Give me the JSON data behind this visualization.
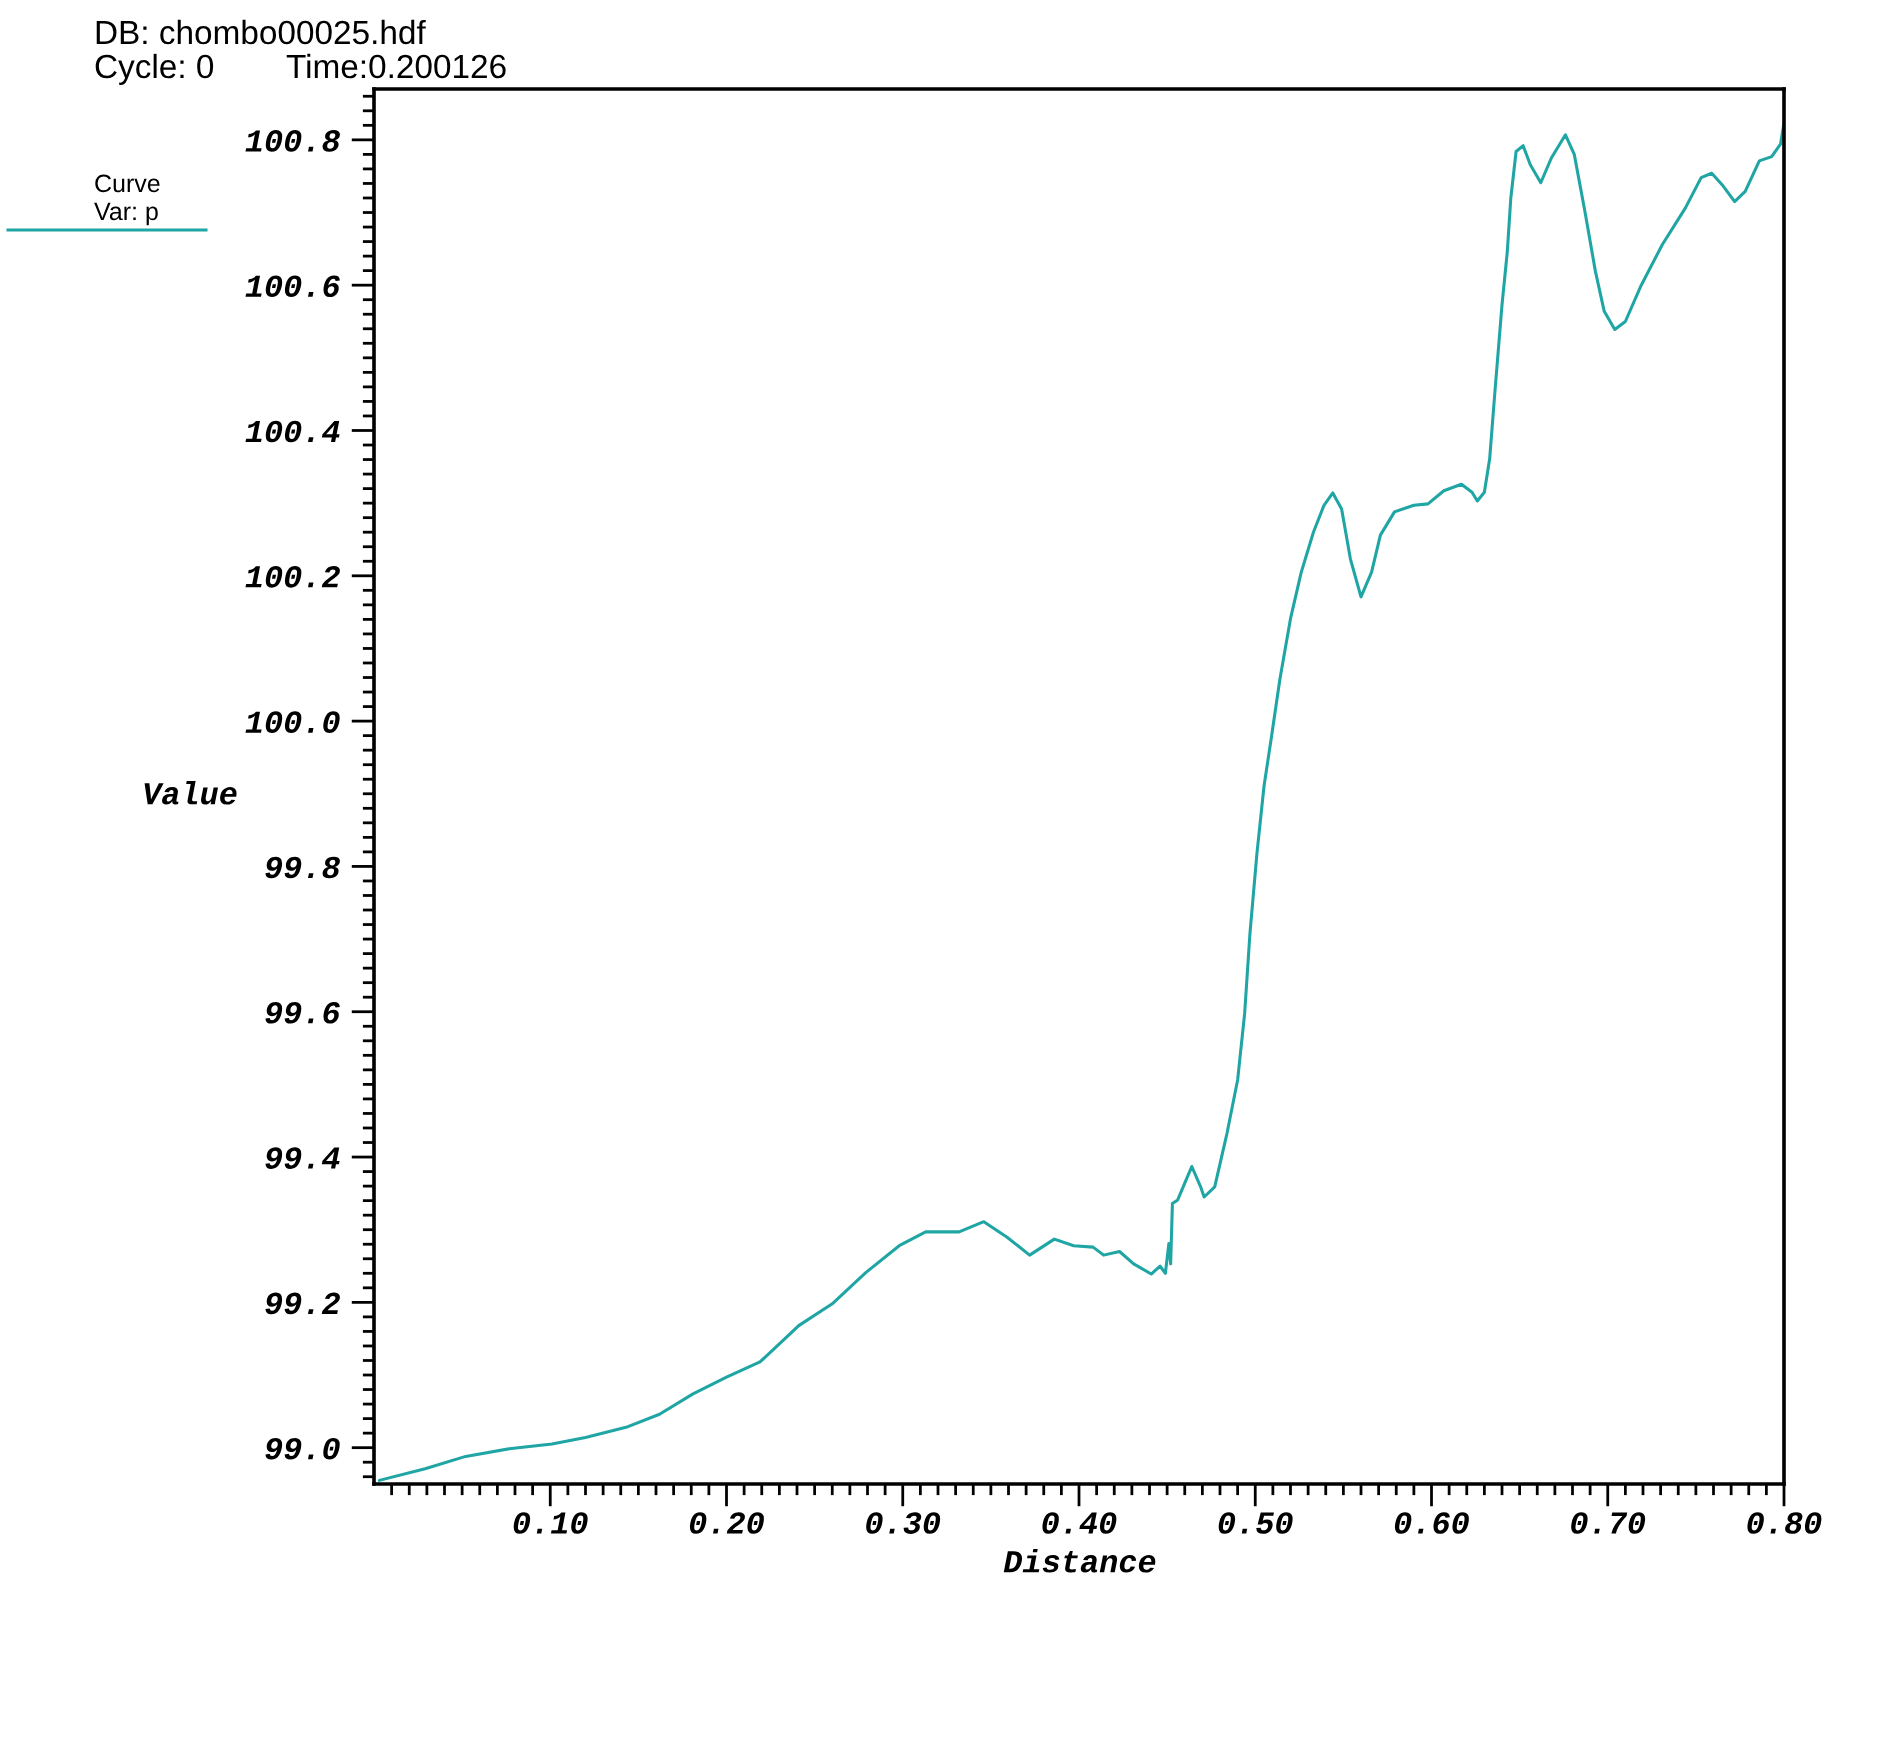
{
  "chart_data": {
    "type": "line",
    "title": "DB: chombo00025.hdf",
    "annotations": [
      "Cycle: 0",
      "Time:0.200126"
    ],
    "xlabel": "Distance",
    "ylabel": "Value",
    "legend_title": "Curve",
    "legend": "top left",
    "grid": false,
    "line_style": "solid",
    "xlim": [
      0,
      0.8
    ],
    "ylim": [
      98.95,
      100.87
    ],
    "xticks": [
      {
        "value": 0.01,
        "label": null
      },
      {
        "value": 0.02,
        "label": null
      },
      {
        "value": 0.03,
        "label": null
      },
      {
        "value": 0.04,
        "label": null
      },
      {
        "value": 0.05,
        "label": null
      },
      {
        "value": 0.06,
        "label": null
      },
      {
        "value": 0.07,
        "label": null
      },
      {
        "value": 0.08,
        "label": null
      },
      {
        "value": 0.09,
        "label": null
      },
      {
        "value": 0.1,
        "label": "0.10"
      },
      {
        "value": 0.11,
        "label": null
      },
      {
        "value": 0.12,
        "label": null
      },
      {
        "value": 0.13,
        "label": null
      },
      {
        "value": 0.14,
        "label": null
      },
      {
        "value": 0.15,
        "label": null
      },
      {
        "value": 0.16,
        "label": null
      },
      {
        "value": 0.17,
        "label": null
      },
      {
        "value": 0.18,
        "label": null
      },
      {
        "value": 0.19,
        "label": null
      },
      {
        "value": 0.2,
        "label": "0.20"
      },
      {
        "value": 0.21,
        "label": null
      },
      {
        "value": 0.22,
        "label": null
      },
      {
        "value": 0.23,
        "label": null
      },
      {
        "value": 0.24,
        "label": null
      },
      {
        "value": 0.25,
        "label": null
      },
      {
        "value": 0.26,
        "label": null
      },
      {
        "value": 0.27,
        "label": null
      },
      {
        "value": 0.28,
        "label": null
      },
      {
        "value": 0.29,
        "label": null
      },
      {
        "value": 0.3,
        "label": "0.30"
      },
      {
        "value": 0.31,
        "label": null
      },
      {
        "value": 0.32,
        "label": null
      },
      {
        "value": 0.33,
        "label": null
      },
      {
        "value": 0.34,
        "label": null
      },
      {
        "value": 0.35,
        "label": null
      },
      {
        "value": 0.36,
        "label": null
      },
      {
        "value": 0.37,
        "label": null
      },
      {
        "value": 0.38,
        "label": null
      },
      {
        "value": 0.39,
        "label": null
      },
      {
        "value": 0.4,
        "label": "0.40"
      },
      {
        "value": 0.41,
        "label": null
      },
      {
        "value": 0.42,
        "label": null
      },
      {
        "value": 0.43,
        "label": null
      },
      {
        "value": 0.44,
        "label": null
      },
      {
        "value": 0.45,
        "label": null
      },
      {
        "value": 0.46,
        "label": null
      },
      {
        "value": 0.47,
        "label": null
      },
      {
        "value": 0.48,
        "label": null
      },
      {
        "value": 0.49,
        "label": null
      },
      {
        "value": 0.5,
        "label": "0.50"
      },
      {
        "value": 0.51,
        "label": null
      },
      {
        "value": 0.52,
        "label": null
      },
      {
        "value": 0.53,
        "label": null
      },
      {
        "value": 0.54,
        "label": null
      },
      {
        "value": 0.55,
        "label": null
      },
      {
        "value": 0.56,
        "label": null
      },
      {
        "value": 0.57,
        "label": null
      },
      {
        "value": 0.58,
        "label": null
      },
      {
        "value": 0.59,
        "label": null
      },
      {
        "value": 0.6,
        "label": "0.60"
      },
      {
        "value": 0.61,
        "label": null
      },
      {
        "value": 0.62,
        "label": null
      },
      {
        "value": 0.63,
        "label": null
      },
      {
        "value": 0.64,
        "label": null
      },
      {
        "value": 0.65,
        "label": null
      },
      {
        "value": 0.66,
        "label": null
      },
      {
        "value": 0.67,
        "label": null
      },
      {
        "value": 0.68,
        "label": null
      },
      {
        "value": 0.69,
        "label": null
      },
      {
        "value": 0.7,
        "label": "0.70"
      },
      {
        "value": 0.71,
        "label": null
      },
      {
        "value": 0.72,
        "label": null
      },
      {
        "value": 0.73,
        "label": null
      },
      {
        "value": 0.74,
        "label": null
      },
      {
        "value": 0.75,
        "label": null
      },
      {
        "value": 0.76,
        "label": null
      },
      {
        "value": 0.77,
        "label": null
      },
      {
        "value": 0.78,
        "label": null
      },
      {
        "value": 0.79,
        "label": null
      },
      {
        "value": 0.8,
        "label": "0.80"
      }
    ],
    "yticks": [
      {
        "value": 98.96,
        "label": null
      },
      {
        "value": 98.98,
        "label": null
      },
      {
        "value": 99,
        "label": "99.0"
      },
      {
        "value": 99.02,
        "label": null
      },
      {
        "value": 99.04,
        "label": null
      },
      {
        "value": 99.06,
        "label": null
      },
      {
        "value": 99.08,
        "label": null
      },
      {
        "value": 99.1,
        "label": null
      },
      {
        "value": 99.12,
        "label": null
      },
      {
        "value": 99.14,
        "label": null
      },
      {
        "value": 99.16,
        "label": null
      },
      {
        "value": 99.18,
        "label": null
      },
      99.2,
      {
        "value": 99.22,
        "label": null
      },
      {
        "value": 99.24,
        "label": null
      },
      {
        "value": 99.26,
        "label": null
      },
      {
        "value": 99.28,
        "label": null
      },
      {
        "value": 99.3,
        "label": null
      },
      {
        "value": 99.32,
        "label": null
      },
      {
        "value": 99.34,
        "label": null
      },
      {
        "value": 99.36,
        "label": null
      },
      {
        "value": 99.38,
        "label": null
      },
      99.4,
      {
        "value": 99.42,
        "label": null
      },
      {
        "value": 99.44,
        "label": null
      },
      {
        "value": 99.46,
        "label": null
      },
      {
        "value": 99.48,
        "label": null
      },
      {
        "value": 99.5,
        "label": null
      },
      {
        "value": 99.52,
        "label": null
      },
      {
        "value": 99.54,
        "label": null
      },
      {
        "value": 99.56,
        "label": null
      },
      {
        "value": 99.58,
        "label": null
      },
      99.6,
      {
        "value": 99.62,
        "label": null
      },
      {
        "value": 99.64,
        "label": null
      },
      {
        "value": 99.66,
        "label": null
      },
      {
        "value": 99.68,
        "label": null
      },
      {
        "value": 99.7,
        "label": null
      },
      {
        "value": 99.72,
        "label": null
      },
      {
        "value": 99.74,
        "label": null
      },
      {
        "value": 99.76,
        "label": null
      },
      {
        "value": 99.78,
        "label": null
      },
      99.8,
      {
        "value": 99.82,
        "label": null
      },
      {
        "value": 99.84,
        "label": null
      },
      {
        "value": 99.86,
        "label": null
      },
      {
        "value": 99.88,
        "label": null
      },
      {
        "value": 99.9,
        "label": null
      },
      {
        "value": 99.92,
        "label": null
      },
      {
        "value": 99.94,
        "label": null
      },
      {
        "value": 99.96,
        "label": null
      },
      {
        "value": 99.98,
        "label": null
      },
      {
        "value": 100,
        "label": "100.0"
      },
      {
        "value": 100.02,
        "label": null
      },
      {
        "value": 100.04,
        "label": null
      },
      {
        "value": 100.06,
        "label": null
      },
      {
        "value": 100.08,
        "label": null
      },
      {
        "value": 100.1,
        "label": null
      },
      {
        "value": 100.12,
        "label": null
      },
      {
        "value": 100.14,
        "label": null
      },
      {
        "value": 100.16,
        "label": null
      },
      {
        "value": 100.18,
        "label": null
      },
      100.2,
      {
        "value": 100.22,
        "label": null
      },
      {
        "value": 100.24,
        "label": null
      },
      {
        "value": 100.26,
        "label": null
      },
      {
        "value": 100.28,
        "label": null
      },
      {
        "value": 100.3,
        "label": null
      },
      {
        "value": 100.32,
        "label": null
      },
      {
        "value": 100.34,
        "label": null
      },
      {
        "value": 100.36,
        "label": null
      },
      {
        "value": 100.38,
        "label": null
      },
      100.4,
      {
        "value": 100.42,
        "label": null
      },
      {
        "value": 100.44,
        "label": null
      },
      {
        "value": 100.46,
        "label": null
      },
      {
        "value": 100.48,
        "label": null
      },
      {
        "value": 100.5,
        "label": null
      },
      {
        "value": 100.52,
        "label": null
      },
      {
        "value": 100.54,
        "label": null
      },
      {
        "value": 100.56,
        "label": null
      },
      {
        "value": 100.58,
        "label": null
      },
      100.6,
      {
        "value": 100.62,
        "label": null
      },
      {
        "value": 100.64,
        "label": null
      },
      {
        "value": 100.66,
        "label": null
      },
      {
        "value": 100.68,
        "label": null
      },
      {
        "value": 100.7,
        "label": null
      },
      {
        "value": 100.72,
        "label": null
      },
      {
        "value": 100.74,
        "label": null
      },
      {
        "value": 100.76,
        "label": null
      },
      {
        "value": 100.78,
        "label": null
      },
      100.8,
      {
        "value": 100.82,
        "label": null
      },
      {
        "value": 100.84,
        "label": null
      },
      {
        "value": 100.86,
        "label": null
      }
    ],
    "x": [
      0.003,
      0.029,
      0.052,
      0.078,
      0.101,
      0.12,
      0.143,
      0.162,
      0.181,
      0.2,
      0.219,
      0.23,
      0.241,
      0.26,
      0.279,
      0.298,
      0.313,
      0.332,
      0.346,
      0.359,
      0.372,
      0.386,
      0.397,
      0.408,
      0.414,
      0.423,
      0.431,
      0.441,
      0.446,
      0.449,
      0.451,
      0.452,
      0.453,
      0.456,
      0.46,
      0.464,
      0.469,
      0.471,
      0.477,
      0.484,
      0.49,
      0.494,
      0.497,
      0.501,
      0.505,
      0.509,
      0.514,
      0.52,
      0.526,
      0.533,
      0.539,
      0.544,
      0.549,
      0.554,
      0.56,
      0.566,
      0.571,
      0.579,
      0.59,
      0.598,
      0.607,
      0.617,
      0.623,
      0.626,
      0.63,
      0.633,
      0.636,
      0.64,
      0.643,
      0.645,
      0.648,
      0.652,
      0.656,
      0.662,
      0.668,
      0.676,
      0.681,
      0.687,
      0.693,
      0.698,
      0.704,
      0.71,
      0.719,
      0.731,
      0.744,
      0.753,
      0.759,
      0.765,
      0.772,
      0.778,
      0.786,
      0.793,
      0.798,
      0.8
    ],
    "series": [
      {
        "name": "Var: p",
        "color": "#20a5a5",
        "values": [
          98.955,
          98.971,
          98.988,
          98.999,
          99.005,
          99.014,
          99.028,
          99.046,
          99.074,
          99.097,
          99.118,
          99.143,
          99.168,
          99.198,
          99.241,
          99.278,
          99.297,
          99.297,
          99.311,
          99.29,
          99.265,
          99.287,
          99.278,
          99.276,
          99.265,
          99.27,
          99.253,
          99.239,
          99.25,
          99.24,
          99.281,
          99.253,
          99.336,
          99.341,
          99.364,
          99.387,
          99.359,
          99.345,
          99.359,
          99.433,
          99.506,
          99.598,
          99.708,
          99.819,
          99.911,
          99.975,
          100.058,
          100.141,
          100.204,
          100.26,
          100.297,
          100.314,
          100.292,
          100.223,
          100.171,
          100.205,
          100.256,
          100.288,
          100.297,
          100.299,
          100.317,
          100.326,
          100.315,
          100.303,
          100.315,
          100.361,
          100.454,
          100.573,
          100.646,
          100.72,
          100.784,
          100.792,
          100.766,
          100.741,
          100.775,
          100.807,
          100.78,
          100.702,
          100.619,
          100.564,
          100.539,
          100.55,
          100.6,
          100.656,
          100.706,
          100.748,
          100.754,
          100.738,
          100.715,
          100.729,
          100.771,
          100.777,
          100.794,
          100.823
        ]
      }
    ]
  }
}
